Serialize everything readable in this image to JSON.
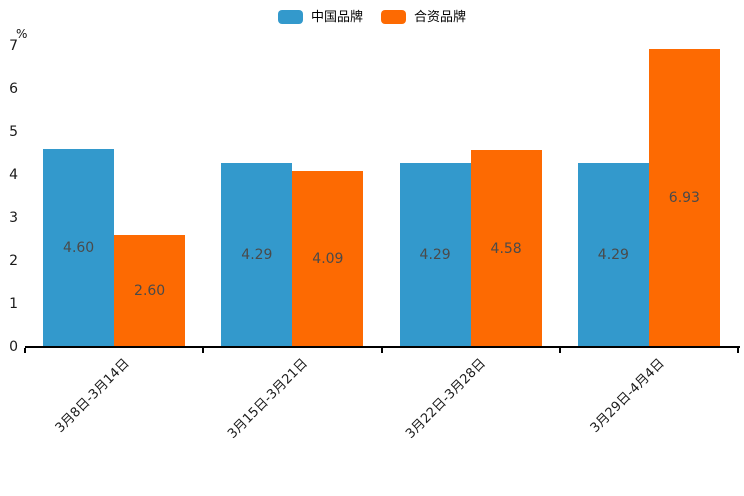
{
  "chart_data": {
    "type": "bar",
    "title": "",
    "unit_label": "%",
    "categories": [
      "3月8日-3月14日",
      "3月15日-3月21日",
      "3月22日-3月28日",
      "3月29日-4月4日"
    ],
    "series": [
      {
        "name": "中国品牌",
        "color": "#3399CC",
        "values": [
          4.6,
          4.29,
          4.29,
          4.29
        ],
        "value_labels": [
          "4.60",
          "4.29",
          "4.29",
          "4.29"
        ]
      },
      {
        "name": "合资品牌",
        "color": "#FD6A02",
        "values": [
          2.6,
          4.09,
          4.58,
          6.93
        ],
        "value_labels": [
          "2.60",
          "4.09",
          "4.58",
          "6.93"
        ]
      }
    ],
    "ylim": [
      0,
      7
    ],
    "yticks": [
      "0",
      "1",
      "2",
      "3",
      "4",
      "5",
      "6",
      "7"
    ],
    "grid": false,
    "legend_position": "top-center",
    "value_label_color": "#4a4a4a",
    "axis_color": "#000000",
    "background_color": "#ffffff"
  }
}
